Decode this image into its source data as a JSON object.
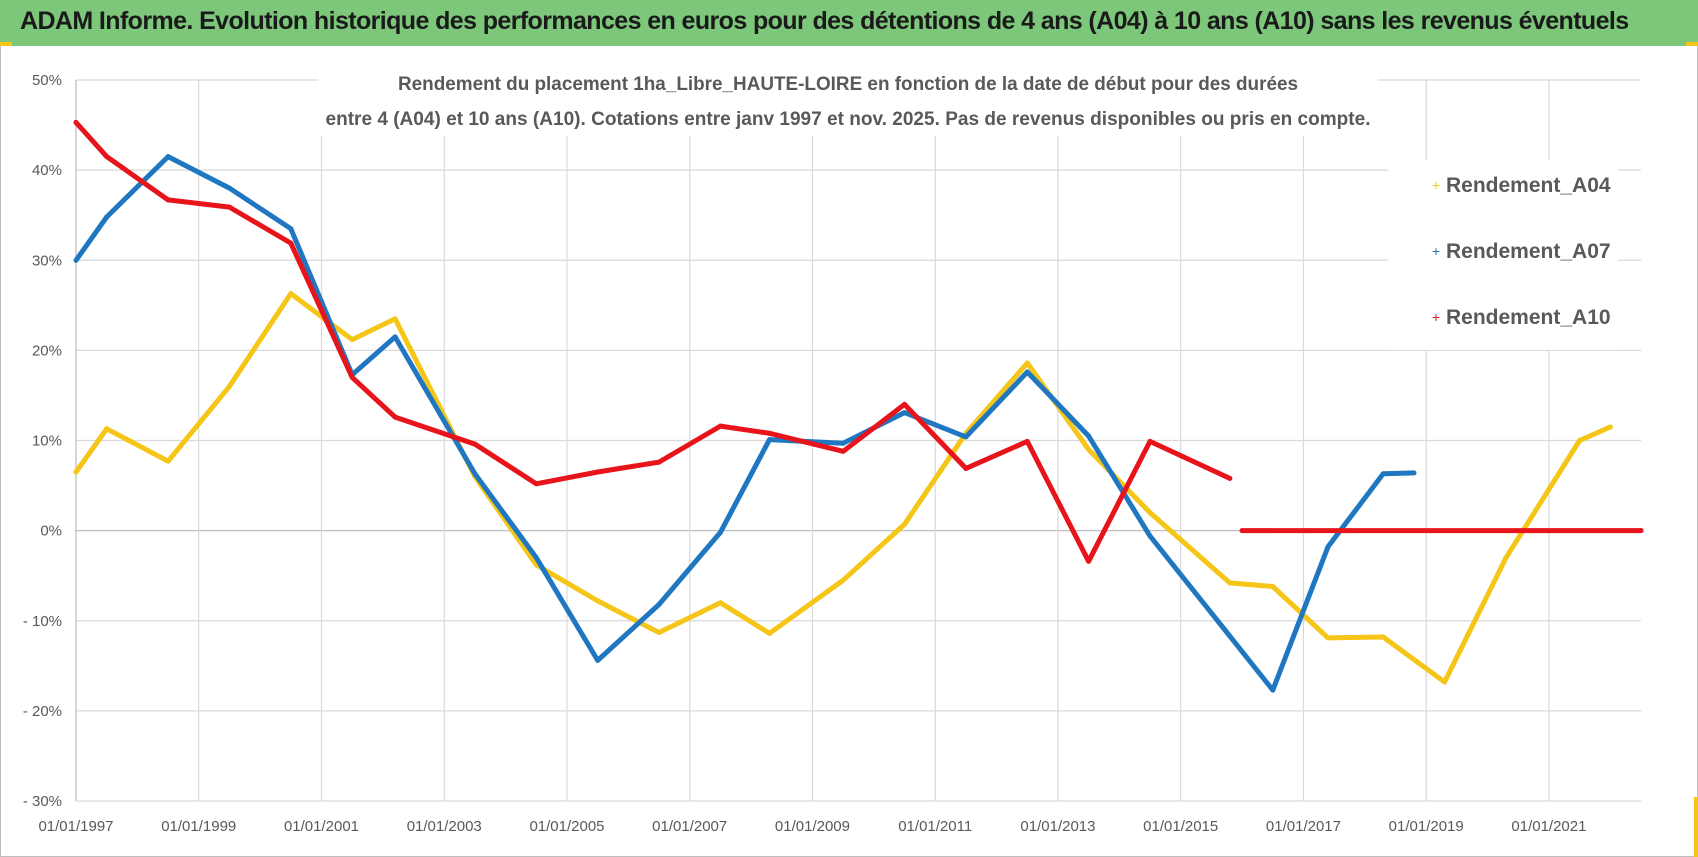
{
  "header": {
    "title": "ADAM Informe. Evolution historique des performances en euros pour des détentions de 4 ans (A04) à 10 ans (A10) sans les revenus éventuels"
  },
  "colors": {
    "header_bg": "#7cc77a",
    "corner_accent": "#f5c518",
    "grid": "#d9d9d9",
    "text": "#595959"
  },
  "chart_data": {
    "type": "line",
    "title_lines": [
      "Rendement du placement 1ha_Libre_HAUTE-LOIRE en fonction de la date de début pour des durées",
      "entre 4 (A04) et 10 ans (A10).  Cotations entre janv 1997 et nov. 2025. Pas de revenus disponibles ou pris en compte."
    ],
    "xlabel": "",
    "ylabel": "",
    "xlim": [
      1997.0,
      2022.5
    ],
    "ylim": [
      -30,
      50
    ],
    "y_ticks": [
      50,
      40,
      30,
      20,
      10,
      0,
      -10,
      -20,
      -30
    ],
    "y_tick_labels": [
      "50%",
      "40%",
      "30%",
      "20%",
      "10%",
      "0%",
      "- 10%",
      "- 20%",
      "- 30%"
    ],
    "x_ticks": [
      1997,
      1999,
      2001,
      2003,
      2005,
      2007,
      2009,
      2011,
      2013,
      2015,
      2017,
      2019,
      2021
    ],
    "x_tick_labels": [
      "01/01/1997",
      "01/01/1999",
      "01/01/2001",
      "01/01/2003",
      "01/01/2005",
      "01/01/2007",
      "01/01/2009",
      "01/01/2011",
      "01/01/2013",
      "01/01/2015",
      "01/01/2017",
      "01/01/2019",
      "01/01/2021"
    ],
    "grid": true,
    "legend_position": "top-right",
    "series": [
      {
        "name": "Rendement_A04",
        "color": "#f5c518",
        "points": [
          [
            1997.0,
            6.5
          ],
          [
            1997.5,
            11.3
          ],
          [
            1998.5,
            7.7
          ],
          [
            1999.5,
            16.0
          ],
          [
            2000.5,
            26.3
          ],
          [
            2001.5,
            21.2
          ],
          [
            2002.2,
            23.5
          ],
          [
            2003.5,
            6.0
          ],
          [
            2004.5,
            -3.8
          ],
          [
            2005.5,
            -7.8
          ],
          [
            2006.5,
            -11.3
          ],
          [
            2007.5,
            -8.0
          ],
          [
            2008.3,
            -11.4
          ],
          [
            2009.5,
            -5.5
          ],
          [
            2010.5,
            0.7
          ],
          [
            2011.5,
            10.8
          ],
          [
            2012.5,
            18.6
          ],
          [
            2013.5,
            9.0
          ],
          [
            2014.5,
            2.0
          ],
          [
            2015.8,
            -5.8
          ],
          [
            2016.5,
            -6.2
          ],
          [
            2017.4,
            -11.9
          ],
          [
            2018.3,
            -11.8
          ],
          [
            2019.3,
            -16.8
          ],
          [
            2020.3,
            -3.0
          ],
          [
            2021.5,
            10.0
          ],
          [
            2022.0,
            11.5
          ]
        ]
      },
      {
        "name": "Rendement_A07",
        "color": "#1f77c1",
        "points": [
          [
            1997.0,
            30.0
          ],
          [
            1997.5,
            34.8
          ],
          [
            1998.5,
            41.5
          ],
          [
            1999.5,
            38.0
          ],
          [
            2000.5,
            33.5
          ],
          [
            2001.5,
            17.3
          ],
          [
            2002.2,
            21.5
          ],
          [
            2003.5,
            6.3
          ],
          [
            2004.5,
            -3.0
          ],
          [
            2005.5,
            -14.4
          ],
          [
            2006.5,
            -8.2
          ],
          [
            2007.5,
            -0.2
          ],
          [
            2008.3,
            10.1
          ],
          [
            2009.5,
            9.7
          ],
          [
            2010.5,
            13.1
          ],
          [
            2011.5,
            10.4
          ],
          [
            2012.5,
            17.6
          ],
          [
            2013.5,
            10.5
          ],
          [
            2014.5,
            -0.6
          ],
          [
            2015.8,
            -11.7
          ],
          [
            2016.5,
            -17.7
          ],
          [
            2017.4,
            -1.8
          ],
          [
            2018.3,
            6.3
          ],
          [
            2018.8,
            6.4
          ]
        ]
      },
      {
        "name": "Rendement_A10",
        "color": "#e8141c",
        "points": [
          [
            1997.0,
            45.3
          ],
          [
            1997.5,
            41.5
          ],
          [
            1998.5,
            36.7
          ],
          [
            1999.5,
            35.9
          ],
          [
            2000.5,
            31.9
          ],
          [
            2001.5,
            17.0
          ],
          [
            2002.2,
            12.6
          ],
          [
            2003.5,
            9.6
          ],
          [
            2004.5,
            5.2
          ],
          [
            2005.5,
            6.5
          ],
          [
            2006.5,
            7.6
          ],
          [
            2007.5,
            11.6
          ],
          [
            2008.3,
            10.8
          ],
          [
            2009.5,
            8.8
          ],
          [
            2010.5,
            14.0
          ],
          [
            2011.5,
            6.9
          ],
          [
            2012.5,
            9.9
          ],
          [
            2013.5,
            -3.4
          ],
          [
            2014.5,
            9.9
          ],
          [
            2015.8,
            5.8
          ]
        ]
      },
      {
        "name": "",
        "color": "#e8141c",
        "points": [
          [
            2016.0,
            0.0
          ],
          [
            2022.5,
            0.0
          ]
        ]
      }
    ]
  }
}
